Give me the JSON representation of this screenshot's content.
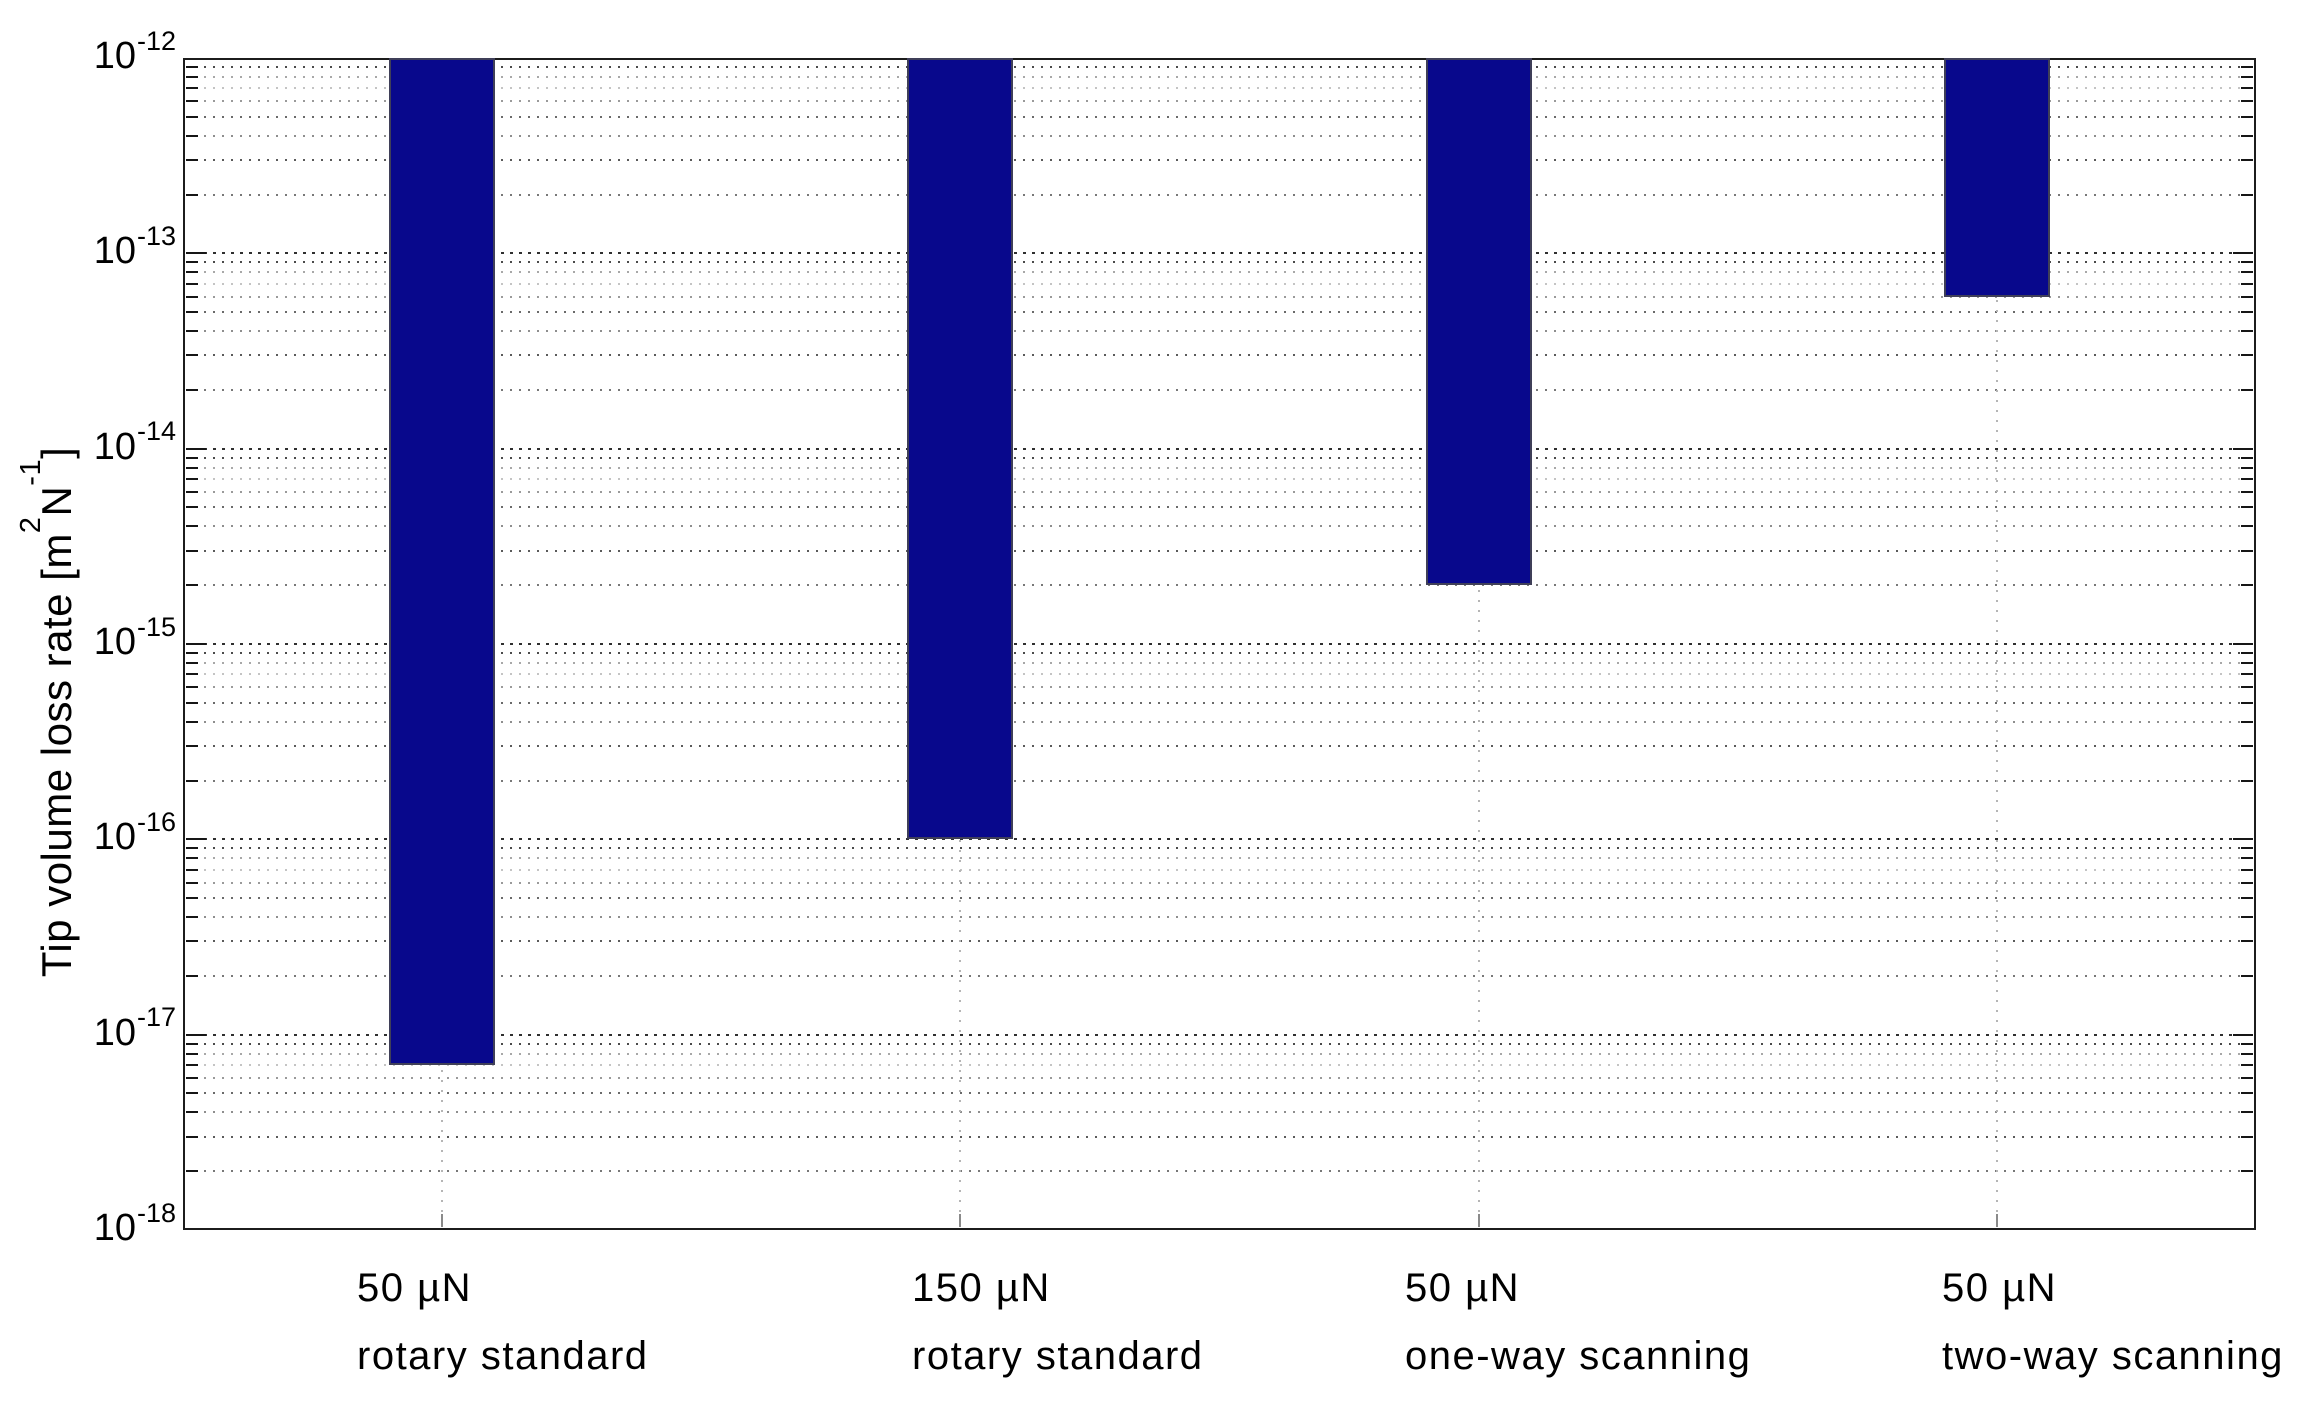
{
  "chart_data": {
    "type": "bar",
    "subtype": "floating-range-bars",
    "title": "",
    "ylabel": {
      "pre": "Tip volume loss rate [m",
      "sup1": "2",
      "mid": "N",
      "sup2": "-1",
      "post": "]"
    },
    "ylabel_text": "Tip volume loss rate [m^2 N^-1]",
    "y_scale": "log",
    "ylim": [
      1e-18,
      1e-12
    ],
    "y_tick_base": "10",
    "y_tick_exponents": [
      "-12",
      "-13",
      "-14",
      "-15",
      "-16",
      "-17",
      "-18"
    ],
    "grid": "on",
    "legend": "none",
    "categories": [
      {
        "line1": "50 µN",
        "line2": "rotary standard"
      },
      {
        "line1": "150 µN",
        "line2": "rotary standard"
      },
      {
        "line1": "50 µN",
        "line2": "one-way scanning"
      },
      {
        "line1": "50 µN",
        "line2": "two-way scanning"
      }
    ],
    "series": [
      {
        "name": "tip-volume-loss-rate-range",
        "ranges": [
          [
            7e-18,
            1e-12
          ],
          [
            1e-16,
            1e-12
          ],
          [
            2e-15,
            1e-12
          ],
          [
            6e-14,
            1e-12
          ]
        ]
      }
    ],
    "colors": {
      "bar_fill": "#08088c",
      "bar_edge": "#3f3f58",
      "axis": "#1c1c1c",
      "grid_major": "#2f2f2f",
      "grid_vertical": "#b5b5b5",
      "background": "#ffffff"
    }
  }
}
